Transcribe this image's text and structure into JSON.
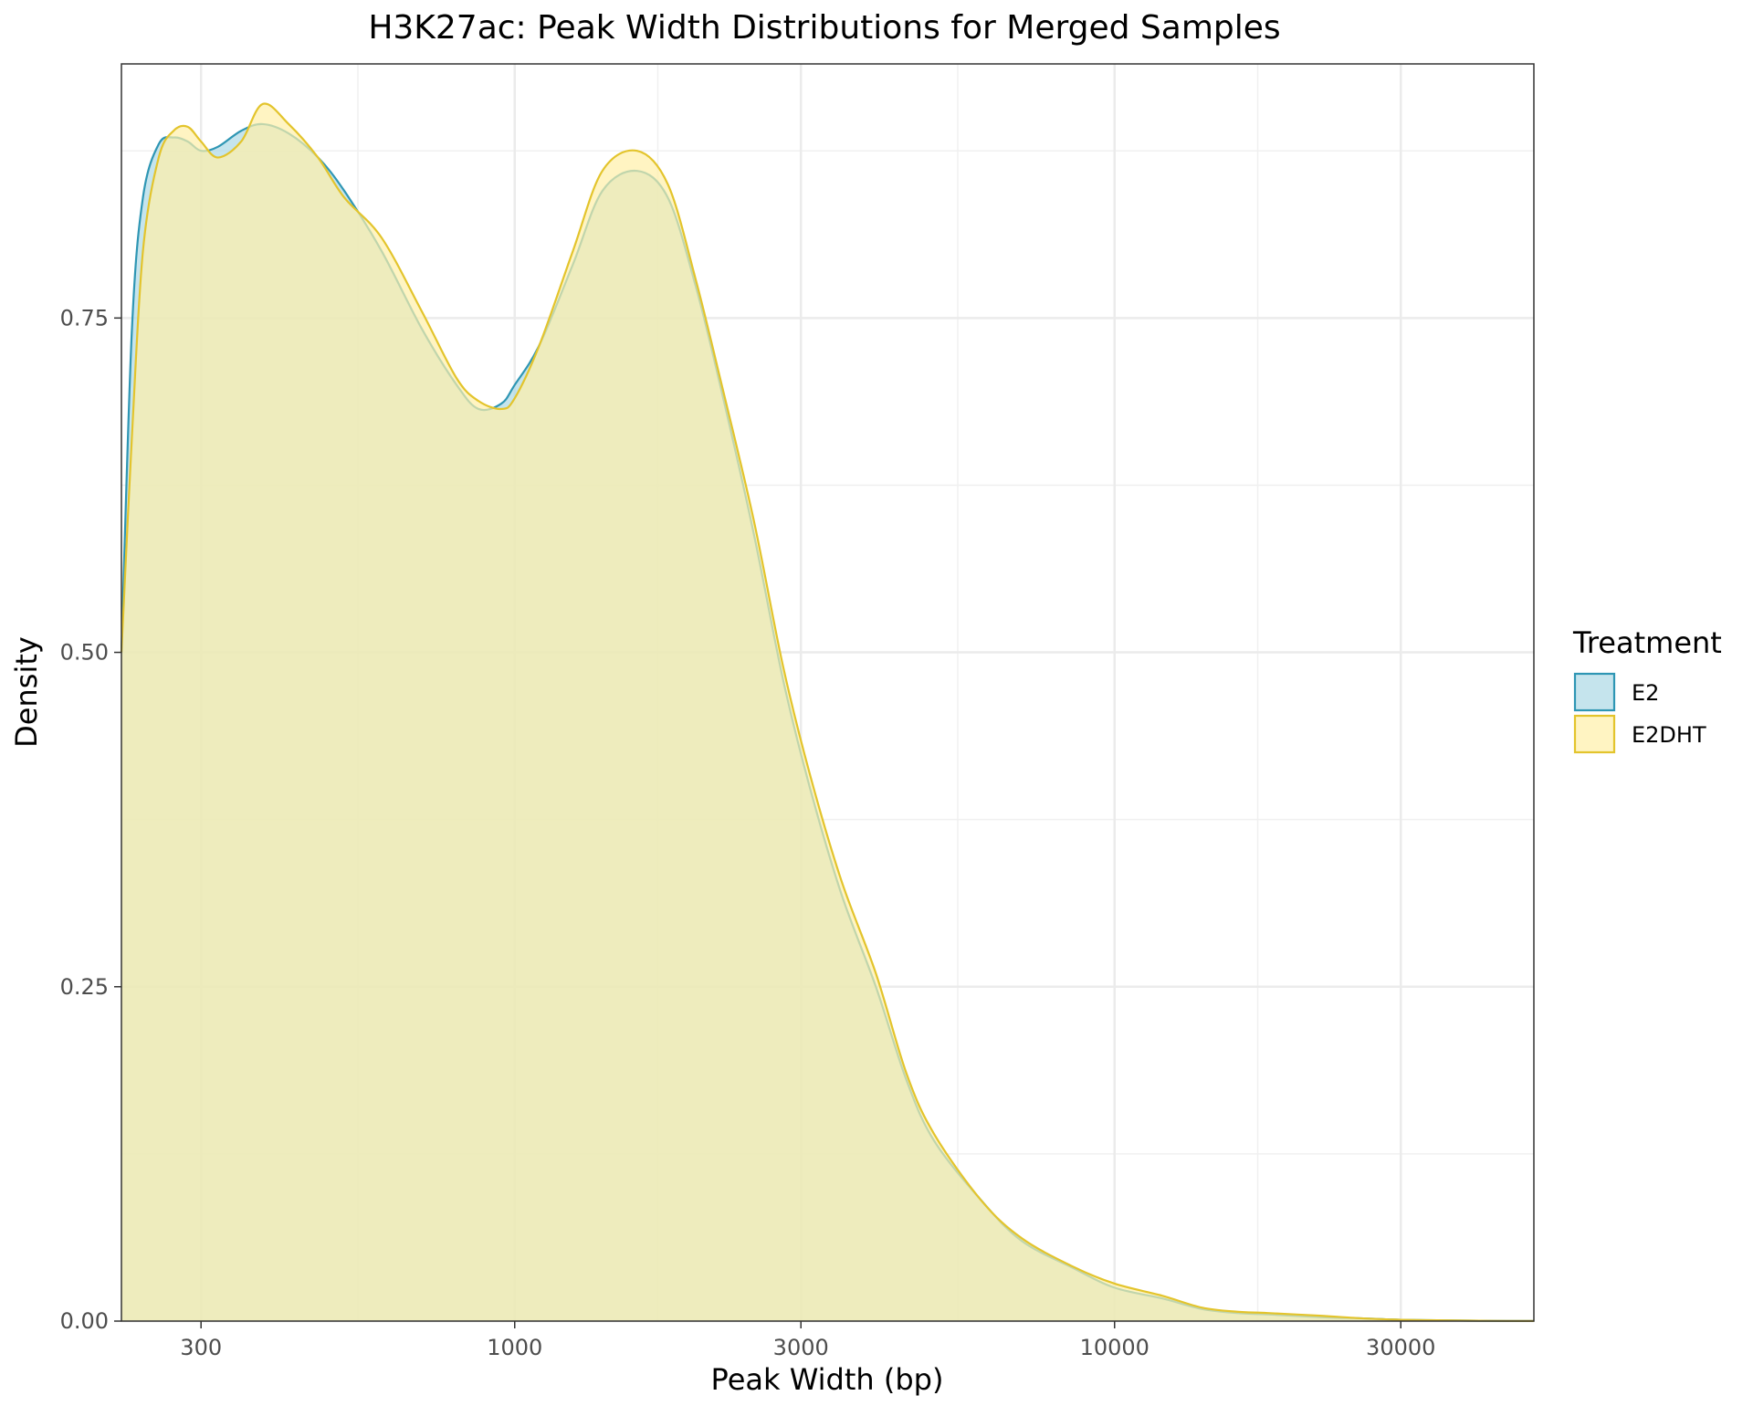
{
  "chart_data": {
    "type": "area",
    "title": "H3K27ac: Peak Width Distributions for Merged Samples",
    "xlabel": "Peak Width (bp)",
    "ylabel": "Density",
    "x_scale": "log10",
    "xlim": [
      221,
      50000
    ],
    "ylim": [
      0,
      0.94
    ],
    "x_ticks": [
      300,
      1000,
      3000,
      10000,
      30000
    ],
    "x_tick_labels": [
      "300",
      "1000",
      "3000",
      "10000",
      "30000"
    ],
    "y_ticks": [
      0,
      0.25,
      0.5,
      0.75
    ],
    "y_tick_labels": [
      "0.00",
      "0.25",
      "0.50",
      "0.75"
    ],
    "grid": true,
    "legend": {
      "title": "Treatment",
      "position": "right"
    },
    "series": [
      {
        "name": "E2",
        "color": "#2E96B4",
        "fill": "#ADD8E6",
        "x": [
          221,
          230,
          240,
          255,
          270,
          285,
          300,
          320,
          350,
          380,
          420,
          470,
          520,
          600,
          700,
          800,
          870,
          950,
          1000,
          1100,
          1250,
          1400,
          1600,
          1800,
          2000,
          2200,
          2500,
          2800,
          3100,
          3500,
          4000,
          4500,
          5000,
          6000,
          7000,
          8500,
          10000,
          12000,
          14000,
          16000,
          18000,
          22000,
          26000,
          30000,
          36000,
          42000,
          50000
        ],
        "y": [
          0.5,
          0.74,
          0.84,
          0.88,
          0.885,
          0.882,
          0.875,
          0.878,
          0.89,
          0.895,
          0.888,
          0.87,
          0.845,
          0.8,
          0.742,
          0.7,
          0.682,
          0.686,
          0.7,
          0.73,
          0.79,
          0.845,
          0.86,
          0.84,
          0.775,
          0.7,
          0.59,
          0.48,
          0.4,
          0.32,
          0.25,
          0.18,
          0.135,
          0.09,
          0.06,
          0.04,
          0.025,
          0.017,
          0.009,
          0.006,
          0.005,
          0.003,
          0.002,
          0.001,
          0.0005,
          0.0002,
          0.0001
        ]
      },
      {
        "name": "E2DHT",
        "color": "#E3C42C",
        "fill": "#FFF0A8",
        "x": [
          221,
          230,
          240,
          255,
          270,
          285,
          300,
          320,
          350,
          380,
          420,
          470,
          520,
          600,
          700,
          800,
          870,
          950,
          1000,
          1100,
          1250,
          1400,
          1600,
          1800,
          2000,
          2200,
          2500,
          2800,
          3100,
          3500,
          4000,
          4500,
          5000,
          6000,
          7000,
          8500,
          10000,
          12000,
          14000,
          16000,
          18000,
          22000,
          26000,
          30000,
          36000,
          42000,
          50000
        ],
        "y": [
          0.5,
          0.66,
          0.8,
          0.87,
          0.89,
          0.893,
          0.882,
          0.87,
          0.882,
          0.91,
          0.895,
          0.87,
          0.84,
          0.81,
          0.755,
          0.705,
          0.688,
          0.682,
          0.69,
          0.73,
          0.8,
          0.86,
          0.875,
          0.85,
          0.78,
          0.705,
          0.6,
          0.49,
          0.41,
          0.33,
          0.26,
          0.185,
          0.14,
          0.09,
          0.062,
          0.041,
          0.028,
          0.019,
          0.01,
          0.007,
          0.006,
          0.004,
          0.002,
          0.001,
          0.0005,
          0.0002,
          0.0001
        ]
      }
    ]
  }
}
